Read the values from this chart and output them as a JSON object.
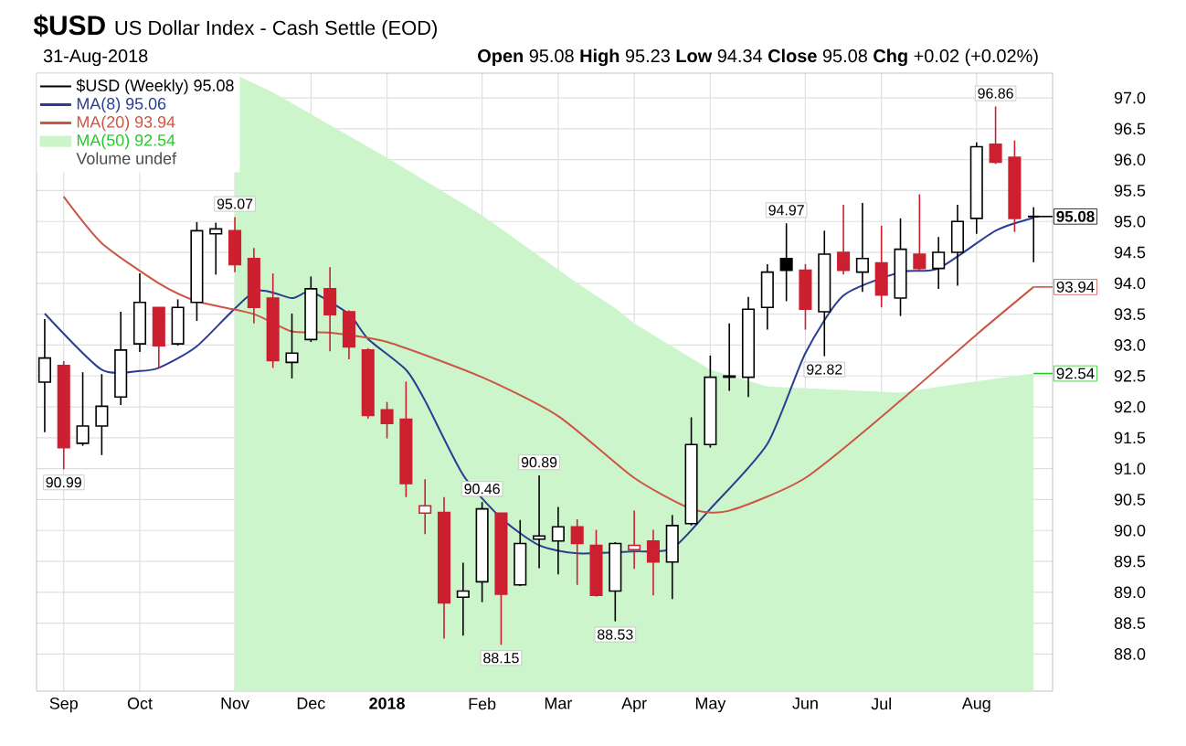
{
  "chart_data": {
    "type": "candlestick",
    "title": "$USD",
    "subtitle": "US Dollar Index - Cash Settle (EOD)",
    "annotations": [
      "31-Aug-2018",
      "**Open** 95.08 **High** 95.23 **Low** 94.34 **Close** 95.08 **Chg** +0.02 (+0.02%)",
      "Volume undef",
      {
        "text": "90.99",
        "x": "2017-09-08",
        "y": 90.99
      },
      {
        "text": "95.07",
        "x": "2017-11-10",
        "y": 95.07
      },
      {
        "text": "90.46",
        "x": "2018-02-09",
        "y": 90.46
      },
      {
        "text": "88.15",
        "x": "2018-02-16",
        "y": 88.15
      },
      {
        "text": "90.89",
        "x": "2018-03-02",
        "y": 90.89
      },
      {
        "text": "88.53",
        "x": "2018-03-30",
        "y": 88.53
      },
      {
        "text": "94.97",
        "x": "2018-06-01",
        "y": 94.97
      },
      {
        "text": "92.82",
        "x": "2018-06-15",
        "y": 92.82
      },
      {
        "text": "96.86",
        "x": "2018-08-17",
        "y": 96.86
      },
      {
        "text": "95.08",
        "x": "2018-08-31",
        "y": 95.08
      },
      {
        "text": "93.94",
        "x": "2018-08-31",
        "y": 93.94
      },
      {
        "text": "92.54",
        "x": "2018-08-31",
        "y": 92.54
      }
    ],
    "xlim": [
      "2017-08-29",
      "2018-09-07"
    ],
    "xticks": [
      {
        "value": "2017-09-08",
        "label": "Sep"
      },
      {
        "value": "2017-10-06",
        "label": "Oct"
      },
      {
        "value": "2017-11-10",
        "label": "Nov"
      },
      {
        "value": "2017-12-08",
        "label": "Dec"
      },
      {
        "value": "2018-01-05",
        "label": "**2018**"
      },
      {
        "value": "2018-02-09",
        "label": "Feb"
      },
      {
        "value": "2018-03-09",
        "label": "Mar"
      },
      {
        "value": "2018-04-06",
        "label": "Apr"
      },
      {
        "value": "2018-05-04",
        "label": "May"
      },
      {
        "value": "2018-06-08",
        "label": "Jun"
      },
      {
        "value": "2018-07-06",
        "label": "Jul"
      },
      {
        "value": "2018-08-10",
        "label": "Aug"
      }
    ],
    "ylim": [
      87.4,
      97.4
    ],
    "yticks": [
      {
        "value": 88,
        "label": "88.0"
      },
      88.5,
      {
        "value": 89,
        "label": "89.0"
      },
      89.5,
      {
        "value": 90,
        "label": "90.0"
      },
      90.5,
      {
        "value": 91,
        "label": "91.0"
      },
      91.5,
      {
        "value": 92,
        "label": "92.0"
      },
      92.5,
      {
        "value": 93,
        "label": "93.0"
      },
      93.5,
      {
        "value": 94,
        "label": "94.0"
      },
      94.5,
      {
        "value": 95,
        "label": "95.0"
      },
      95.5,
      {
        "value": 96,
        "label": "96.0"
      },
      96.5,
      {
        "value": 97,
        "label": "97.0"
      }
    ],
    "grid": true,
    "legend": "top left",
    "series": [
      {
        "name": "$USD (Weekly) 95.08",
        "type": "candlestick",
        "color": "#000000",
        "x": [
          "2017-09-01",
          "2017-09-08",
          "2017-09-15",
          "2017-09-22",
          "2017-09-29",
          "2017-10-06",
          "2017-10-13",
          "2017-10-20",
          "2017-10-27",
          "2017-11-03",
          "2017-11-10",
          "2017-11-17",
          "2017-11-24",
          "2017-12-01",
          "2017-12-08",
          "2017-12-15",
          "2017-12-22",
          "2017-12-29",
          "2018-01-05",
          "2018-01-12",
          "2018-01-19",
          "2018-01-26",
          "2018-02-02",
          "2018-02-09",
          "2018-02-16",
          "2018-02-23",
          "2018-03-02",
          "2018-03-09",
          "2018-03-16",
          "2018-03-23",
          "2018-03-30",
          "2018-04-06",
          "2018-04-13",
          "2018-04-20",
          "2018-04-27",
          "2018-05-04",
          "2018-05-11",
          "2018-05-18",
          "2018-05-25",
          "2018-06-01",
          "2018-06-08",
          "2018-06-15",
          "2018-06-22",
          "2018-06-29",
          "2018-07-06",
          "2018-07-13",
          "2018-07-20",
          "2018-07-27",
          "2018-08-03",
          "2018-08-10",
          "2018-08-17",
          "2018-08-24",
          "2018-08-31"
        ],
        "ohlc": [
          [
            92.4,
            93.42,
            91.59,
            92.79
          ],
          [
            92.67,
            92.74,
            90.99,
            91.34
          ],
          [
            91.41,
            92.56,
            91.37,
            91.69
          ],
          [
            91.69,
            92.53,
            91.22,
            92.01
          ],
          [
            92.16,
            93.54,
            92.03,
            92.92
          ],
          [
            93.02,
            94.16,
            92.89,
            93.69
          ],
          [
            93.61,
            93.61,
            92.63,
            92.99
          ],
          [
            93.02,
            93.74,
            92.99,
            93.61
          ],
          [
            93.69,
            94.99,
            93.39,
            94.85
          ],
          [
            94.8,
            94.98,
            94.14,
            94.88
          ],
          [
            94.85,
            95.07,
            94.18,
            94.3
          ],
          [
            94.4,
            94.57,
            93.35,
            93.61
          ],
          [
            93.76,
            94.16,
            92.63,
            92.75
          ],
          [
            92.72,
            93.51,
            92.46,
            92.87
          ],
          [
            93.09,
            94.11,
            93.05,
            93.91
          ],
          [
            93.91,
            94.26,
            92.9,
            93.49
          ],
          [
            93.54,
            93.56,
            92.77,
            92.97
          ],
          [
            92.92,
            92.95,
            91.81,
            91.86
          ],
          [
            91.95,
            92.08,
            91.49,
            91.73
          ],
          [
            91.8,
            92.41,
            90.54,
            90.76
          ],
          [
            90.28,
            90.83,
            89.94,
            90.4
          ],
          [
            90.29,
            90.54,
            88.25,
            88.83
          ],
          [
            88.92,
            89.48,
            88.3,
            89.02
          ],
          [
            89.17,
            90.46,
            88.84,
            90.35
          ],
          [
            90.28,
            90.28,
            88.15,
            88.97
          ],
          [
            89.12,
            90.17,
            89.1,
            89.79
          ],
          [
            89.86,
            90.89,
            89.39,
            89.91
          ],
          [
            89.83,
            90.38,
            89.29,
            90.06
          ],
          [
            90.06,
            90.18,
            89.12,
            89.79
          ],
          [
            89.76,
            90.01,
            88.93,
            88.95
          ],
          [
            89.02,
            89.81,
            88.53,
            89.79
          ],
          [
            89.69,
            90.32,
            89.38,
            89.76
          ],
          [
            89.83,
            90.01,
            88.95,
            89.49
          ],
          [
            89.49,
            90.25,
            88.89,
            90.08
          ],
          [
            90.11,
            91.83,
            90.08,
            91.39
          ],
          [
            91.39,
            92.83,
            91.34,
            92.48
          ],
          [
            92.48,
            93.35,
            92.26,
            92.5
          ],
          [
            92.48,
            93.78,
            92.16,
            93.58
          ],
          [
            93.61,
            94.31,
            93.25,
            94.18
          ],
          [
            94.4,
            94.97,
            93.71,
            94.21
          ],
          [
            94.21,
            94.31,
            93.25,
            93.58
          ],
          [
            93.54,
            94.85,
            92.82,
            94.47
          ],
          [
            94.5,
            95.27,
            94.14,
            94.21
          ],
          [
            94.18,
            95.3,
            93.86,
            94.4
          ],
          [
            94.33,
            94.93,
            93.61,
            93.81
          ],
          [
            93.76,
            95.05,
            93.47,
            94.55
          ],
          [
            94.47,
            95.44,
            94.21,
            94.24
          ],
          [
            94.24,
            94.75,
            93.91,
            94.5
          ],
          [
            94.5,
            95.27,
            93.96,
            95.0
          ],
          [
            95.05,
            96.28,
            94.8,
            96.21
          ],
          [
            96.25,
            96.86,
            95.93,
            95.96
          ],
          [
            96.04,
            96.31,
            94.83,
            95.05
          ],
          [
            95.08,
            95.23,
            94.34,
            95.08
          ]
        ],
        "colors": [
          "#000000",
          "#cc1f2f",
          "#000000",
          "#000000",
          "#000000",
          "#000000",
          "#cc1f2f",
          "#000000",
          "#000000",
          "#000000",
          "#cc1f2f",
          "#cc1f2f",
          "#cc1f2f",
          "#000000",
          "#000000",
          "#cc1f2f",
          "#cc1f2f",
          "#cc1f2f",
          "#cc1f2f",
          "#cc1f2f",
          "#cc1f2f",
          "#cc1f2f",
          "#000000",
          "#000000",
          "#cc1f2f",
          "#000000",
          "#000000",
          "#000000",
          "#cc1f2f",
          "#cc1f2f",
          "#000000",
          "#cc1f2f",
          "#cc1f2f",
          "#000000",
          "#000000",
          "#000000",
          "#000000",
          "#000000",
          "#000000",
          "#000000",
          "#cc1f2f",
          "#000000",
          "#cc1f2f",
          "#000000",
          "#cc1f2f",
          "#000000",
          "#cc1f2f",
          "#000000",
          "#000000",
          "#000000",
          "#cc1f2f",
          "#cc1f2f",
          "#000000"
        ]
      },
      {
        "name": "MA(8) 95.06",
        "type": "line",
        "color": "#2a3d91",
        "x": [
          "2017-09-01",
          "2017-09-22",
          "2017-10-06",
          "2017-10-13",
          "2017-10-27",
          "2017-11-17",
          "2017-12-01",
          "2017-12-08",
          "2017-12-22",
          "2017-12-29",
          "2018-01-12",
          "2018-01-19",
          "2018-02-02",
          "2018-02-16",
          "2018-03-02",
          "2018-03-16",
          "2018-04-06",
          "2018-04-20",
          "2018-05-04",
          "2018-05-25",
          "2018-06-08",
          "2018-06-22",
          "2018-07-13",
          "2018-07-27",
          "2018-08-17",
          "2018-08-31"
        ],
        "values": [
          93.51,
          92.6,
          92.58,
          92.63,
          92.98,
          93.86,
          93.76,
          93.86,
          93.5,
          93.1,
          92.6,
          92.1,
          90.9,
          90.2,
          89.76,
          89.63,
          89.66,
          89.71,
          90.35,
          91.4,
          92.87,
          93.8,
          94.18,
          94.24,
          94.85,
          95.06
        ]
      },
      {
        "name": "MA(20) 93.94",
        "type": "line",
        "color": "#cc5544",
        "x": [
          "2017-09-08",
          "2017-09-22",
          "2017-10-13",
          "2017-10-27",
          "2017-11-17",
          "2017-12-01",
          "2017-12-15",
          "2018-01-05",
          "2018-02-09",
          "2018-03-09",
          "2018-04-06",
          "2018-04-27",
          "2018-05-11",
          "2018-06-08",
          "2018-07-13",
          "2018-08-10",
          "2018-08-31"
        ],
        "values": [
          95.4,
          94.65,
          94.0,
          93.71,
          93.5,
          93.22,
          93.2,
          93.05,
          92.48,
          91.85,
          90.85,
          90.35,
          90.32,
          90.85,
          92.1,
          93.17,
          93.94
        ]
      },
      {
        "name": "MA(50) 92.54",
        "type": "area",
        "color": "#ccf5cc",
        "x": [
          "2017-11-10",
          "2017-11-24",
          "2017-12-15",
          "2018-01-05",
          "2018-02-09",
          "2018-03-16",
          "2018-03-30",
          "2018-04-06",
          "2018-05-04",
          "2018-05-25",
          "2018-07-13",
          "2018-08-03",
          "2018-08-31"
        ],
        "values": [
          97.38,
          97.09,
          96.56,
          96.03,
          95.1,
          94.0,
          93.6,
          93.35,
          92.6,
          92.33,
          92.23,
          92.37,
          92.54
        ]
      }
    ]
  }
}
